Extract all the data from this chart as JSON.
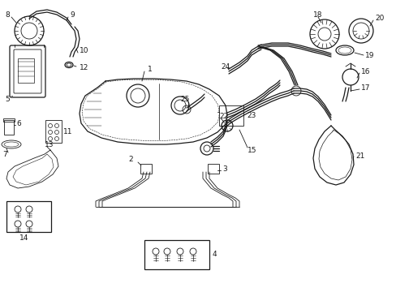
{
  "background_color": "#ffffff",
  "line_color": "#1a1a1a",
  "figsize": [
    4.89,
    3.6
  ],
  "dpi": 100,
  "lw_thin": 0.6,
  "lw_med": 0.9,
  "lw_thick": 1.2,
  "font_size": 6.5
}
